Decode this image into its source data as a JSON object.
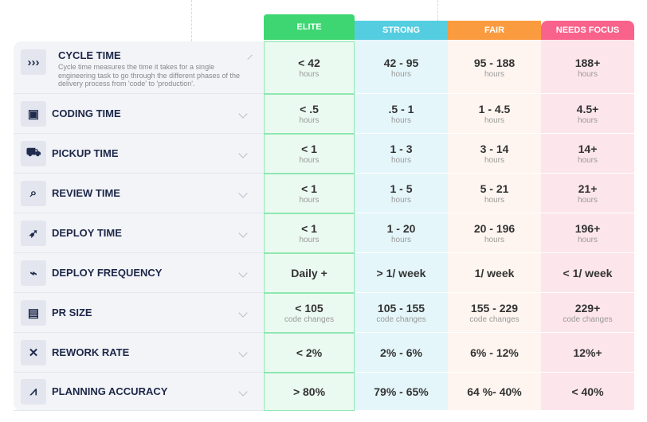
{
  "tiers": [
    {
      "label": "ELITE",
      "color": "#3dd672",
      "bg": "#ebfaf1"
    },
    {
      "label": "STRONG",
      "color": "#55cde0",
      "bg": "#e4f6fa"
    },
    {
      "label": "FAIR",
      "color": "#fb9b40",
      "bg": "#fef5f0"
    },
    {
      "label": "NEEDS FOCUS",
      "color": "#f9628a",
      "bg": "#fde5ec"
    }
  ],
  "metrics": [
    {
      "title": "CYCLE TIME",
      "description": "Cycle time measures the time it takes for a single engineering task to go through the different phases of the delivery process from 'code' to 'production'.",
      "icon": "chevrons-icon",
      "glyph": "›››",
      "expanded": true,
      "values": [
        "< 42",
        "42 - 95",
        "95 - 188",
        "188+"
      ],
      "unit": "hours"
    },
    {
      "title": "CODING TIME",
      "icon": "code-file-clock-icon",
      "glyph": "▣",
      "values": [
        "< .5",
        ".5 - 1",
        "1 - 4.5",
        "4.5+"
      ],
      "unit": "hours"
    },
    {
      "title": "PICKUP TIME",
      "icon": "truck-icon",
      "glyph": "⛟",
      "values": [
        "< 1",
        "1 - 3",
        "3 - 14",
        "14+"
      ],
      "unit": "hours"
    },
    {
      "title": "REVIEW TIME",
      "icon": "review-search-icon",
      "glyph": "⌕",
      "values": [
        "< 1",
        "1 - 5",
        "5 - 21",
        "21+"
      ],
      "unit": "hours"
    },
    {
      "title": "DEPLOY TIME",
      "icon": "rocket-icon",
      "glyph": "➶",
      "values": [
        "< 1",
        "1 - 20",
        "20 - 196",
        "196+"
      ],
      "unit": "hours"
    },
    {
      "title": "DEPLOY FREQUENCY",
      "icon": "pulse-window-icon",
      "glyph": "⌁",
      "values": [
        "Daily +",
        "> 1/ week",
        "1/ week",
        "< 1/ week"
      ],
      "unit": ""
    },
    {
      "title": "PR SIZE",
      "icon": "pr-file-icon",
      "glyph": "▤",
      "values": [
        "< 105",
        "105 - 155",
        "155 - 229",
        "229+"
      ],
      "unit": "code changes"
    },
    {
      "title": "REWORK RATE",
      "icon": "tools-icon",
      "glyph": "✕",
      "values": [
        "< 2%",
        "2% - 6%",
        "6% - 12%",
        "12%+"
      ],
      "unit": ""
    },
    {
      "title": "PLANNING ACCURACY",
      "icon": "chart-icon",
      "glyph": "⩘",
      "values": [
        "> 80%",
        "79% - 65%",
        "64 %- 40%",
        "< 40%"
      ],
      "unit": ""
    }
  ]
}
